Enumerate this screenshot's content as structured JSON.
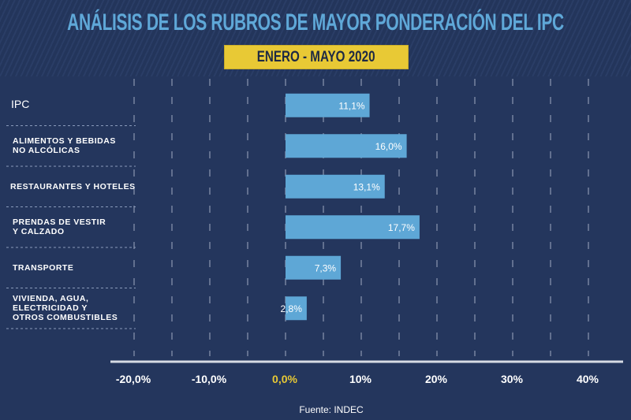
{
  "header": {
    "title": "ANÁLISIS DE LOS RUBROS DE MAYOR PONDERACIÓN DEL IPC",
    "subtitle": "ENERO - MAYO 2020"
  },
  "source": "Fuente: INDEC",
  "chart_data": {
    "type": "bar",
    "orientation": "horizontal",
    "title": "ANÁLISIS DE LOS RUBROS DE MAYOR PONDERACIÓN DEL IPC",
    "subtitle": "ENERO - MAYO 2020",
    "categories": [
      "IPC",
      "ALIMENTOS Y BEBIDAS\nNO ALCÓLICAS",
      "RESTAURANTES Y HOTELES",
      "PRENDAS DE VESTIR\nY CALZADO",
      "TRANSPORTE",
      "VIVIENDA, AGUA,\nELECTRICIDAD Y\nOTROS COMBUSTIBLES"
    ],
    "values": [
      11.1,
      16.0,
      13.1,
      17.7,
      7.3,
      2.8
    ],
    "data_labels": [
      "11,1%",
      "16,0%",
      "13,1%",
      "17,7%",
      "7,3%",
      "2,8%"
    ],
    "xlim": [
      -20,
      40
    ],
    "xticks": [
      -20,
      -10,
      0,
      10,
      20,
      30,
      40
    ],
    "xtick_labels": [
      "-20,0%",
      "-10,0%",
      "0,0%",
      "10%",
      "20%",
      "30%",
      "40%"
    ],
    "grid": true,
    "colors": {
      "bar": "#5ea7d6",
      "zero_label": "#e8c935",
      "background": "#24365d",
      "title": "#5fa8d8"
    }
  }
}
